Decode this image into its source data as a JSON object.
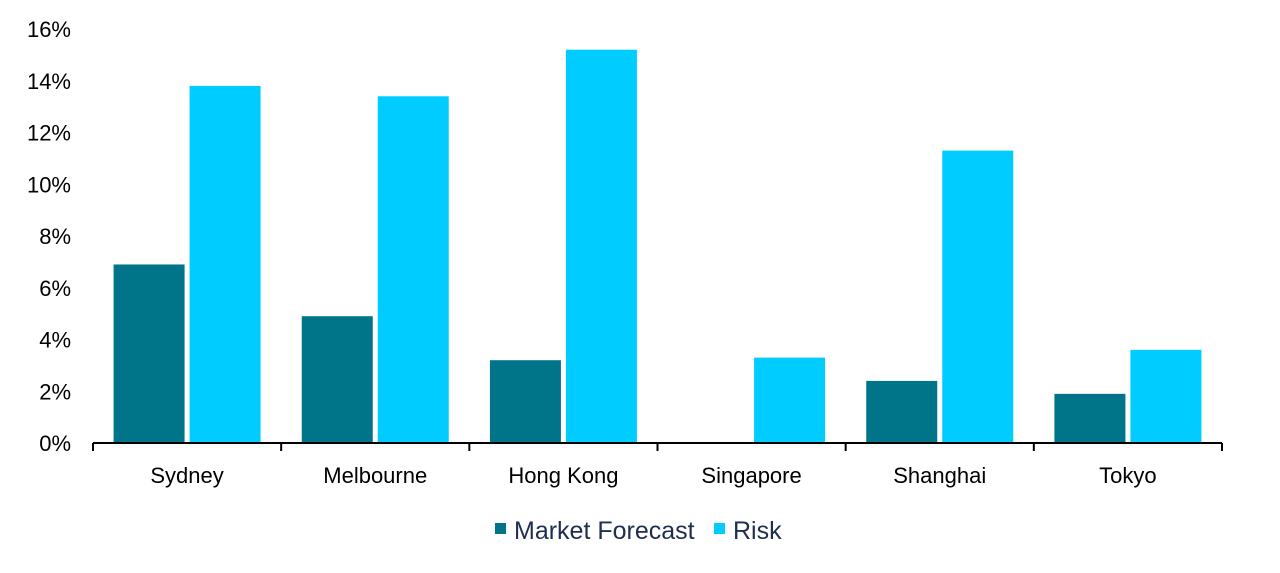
{
  "chart_data": {
    "type": "bar",
    "title": "",
    "xlabel": "",
    "ylabel": "",
    "categories": [
      "Sydney",
      "Melbourne",
      "Hong Kong",
      "Singapore",
      "Shanghai",
      "Tokyo"
    ],
    "series": [
      {
        "name": "Market Forecast",
        "color": "#00758a",
        "values": [
          6.9,
          4.9,
          3.2,
          0,
          2.4,
          1.9
        ]
      },
      {
        "name": "Risk",
        "color": "#00ccff",
        "values": [
          13.8,
          13.4,
          15.2,
          3.3,
          11.3,
          3.6
        ]
      }
    ],
    "ylim": [
      0,
      16
    ],
    "ytick_step": 2,
    "ytick_labels": [
      "0%",
      "2%",
      "4%",
      "6%",
      "8%",
      "10%",
      "12%",
      "14%",
      "16%"
    ],
    "grid": false,
    "legend_position": "bottom"
  }
}
